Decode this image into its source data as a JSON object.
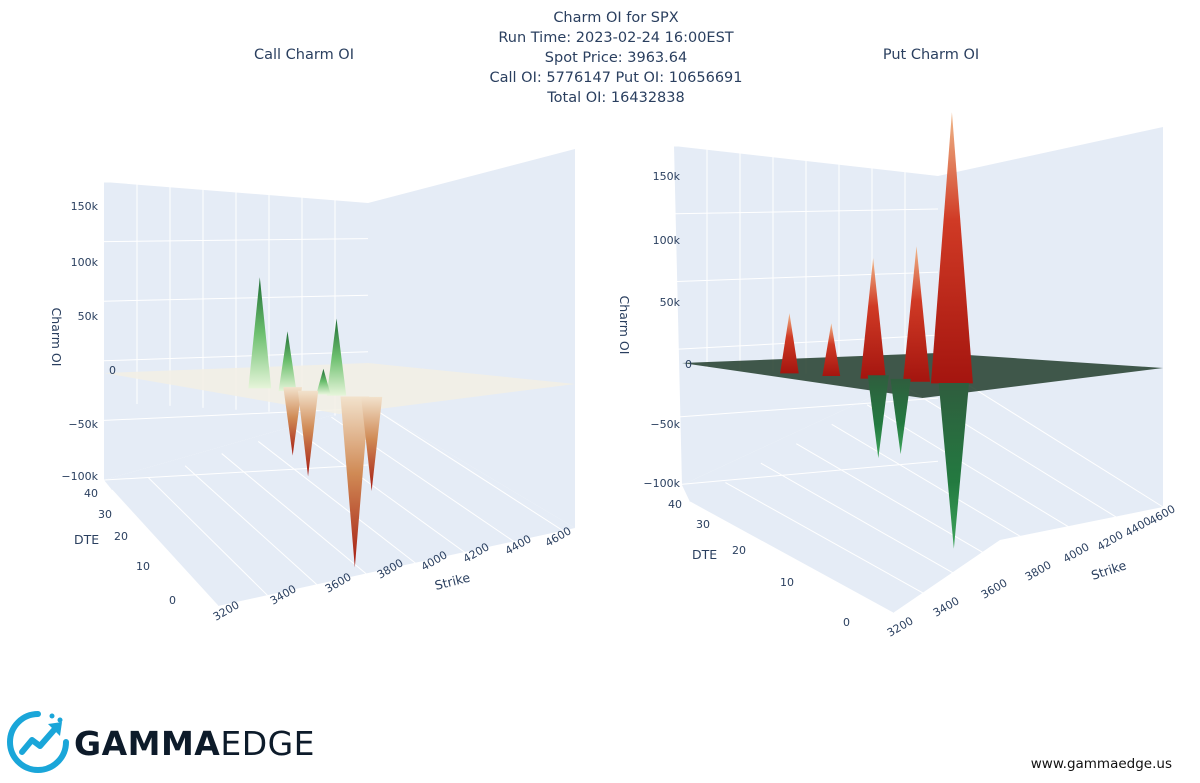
{
  "title": {
    "line1": "Charm OI for SPX",
    "line2": "Run Time: 2023-02-24 16:00EST",
    "line3": "Spot Price: 3963.64",
    "line4": "Call OI: 5776147 Put OI: 10656691",
    "line5": "Total OI: 16432838"
  },
  "chart_data": [
    {
      "type": "surface",
      "title": "Call Charm OI",
      "x_label": "Strike",
      "y_label": "DTE",
      "z_label": "Charm OI",
      "x_ticks": [
        "3200",
        "3400",
        "3600",
        "3800",
        "4000",
        "4200",
        "4400",
        "4600"
      ],
      "y_ticks": [
        "0",
        "10",
        "20",
        "30",
        "40"
      ],
      "z_ticks": [
        "−100k",
        "−50k",
        "0",
        "50k",
        "100k",
        "150k"
      ],
      "z_range": [
        -100000,
        170000
      ],
      "peaks": [
        {
          "strike": 3730,
          "dte": 15,
          "charm": 65000
        },
        {
          "strike": 3790,
          "dte": 10,
          "charm": 35000
        },
        {
          "strike": 3900,
          "dte": 2,
          "charm": 45000
        },
        {
          "strike": 3870,
          "dte": 4,
          "charm": 15000
        },
        {
          "strike": 3850,
          "dte": 20,
          "charm": -40000
        },
        {
          "strike": 3860,
          "dte": 12,
          "charm": -50000
        },
        {
          "strike": 3950,
          "dte": 1,
          "charm": -100000
        },
        {
          "strike": 4000,
          "dte": 1,
          "charm": -55000
        }
      ],
      "colors": {
        "positive": "#1f7a3a",
        "zero": "#f3ead8",
        "negative": "#b32418"
      }
    },
    {
      "type": "surface",
      "title": "Put Charm OI",
      "x_label": "Strike",
      "y_label": "DTE",
      "z_label": "Charm OI",
      "x_ticks": [
        "3200",
        "3400",
        "3600",
        "3800",
        "4000",
        "4200",
        "4400",
        "4600"
      ],
      "y_ticks": [
        "0",
        "10",
        "20",
        "30",
        "40"
      ],
      "z_ticks": [
        "−100k",
        "−50k",
        "0",
        "50k",
        "100k",
        "150k"
      ],
      "z_range": [
        -100000,
        170000
      ],
      "peaks": [
        {
          "strike": 3600,
          "dte": 20,
          "charm": 40000
        },
        {
          "strike": 3700,
          "dte": 15,
          "charm": 35000
        },
        {
          "strike": 3800,
          "dte": 10,
          "charm": 80000
        },
        {
          "strike": 3900,
          "dte": 4,
          "charm": 90000
        },
        {
          "strike": 3990,
          "dte": 1,
          "charm": 180000
        },
        {
          "strike": 3850,
          "dte": 18,
          "charm": -55000
        },
        {
          "strike": 3880,
          "dte": 10,
          "charm": -50000
        },
        {
          "strike": 4000,
          "dte": 2,
          "charm": -110000
        }
      ],
      "colors": {
        "positive": "#b31a14",
        "zero": "#23402f",
        "negative": "#1f7a3a"
      }
    }
  ],
  "brand": {
    "name_bold": "GAMMA",
    "name_light": "EDGE",
    "website": "www.gammaedge.us"
  }
}
